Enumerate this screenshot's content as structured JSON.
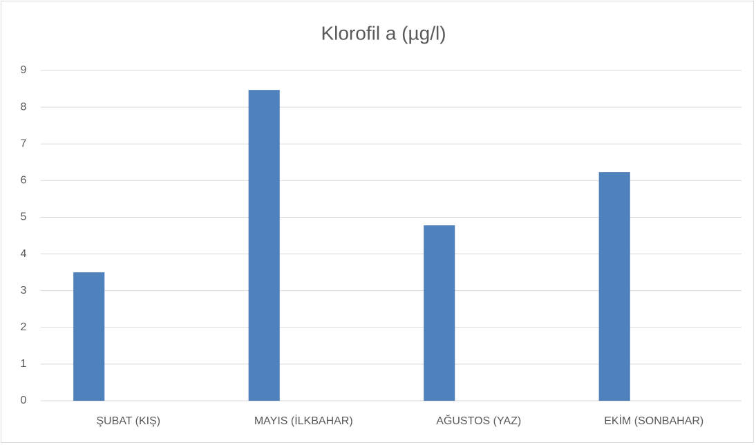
{
  "chart_data": {
    "type": "bar",
    "title": "Klorofil a (µg/l)",
    "categories": [
      "ŞUBAT (KIŞ)",
      "MAYIS (İLKBAHAR)",
      "AĞUSTOS (YAZ)",
      "EKİM (SONBAHAR)"
    ],
    "values": [
      3.5,
      8.47,
      4.78,
      6.23
    ],
    "color": "#4f81bd",
    "ylim": [
      0,
      9
    ],
    "yticks": [
      0,
      1,
      2,
      3,
      4,
      5,
      6,
      7,
      8,
      9
    ],
    "grid": true
  }
}
